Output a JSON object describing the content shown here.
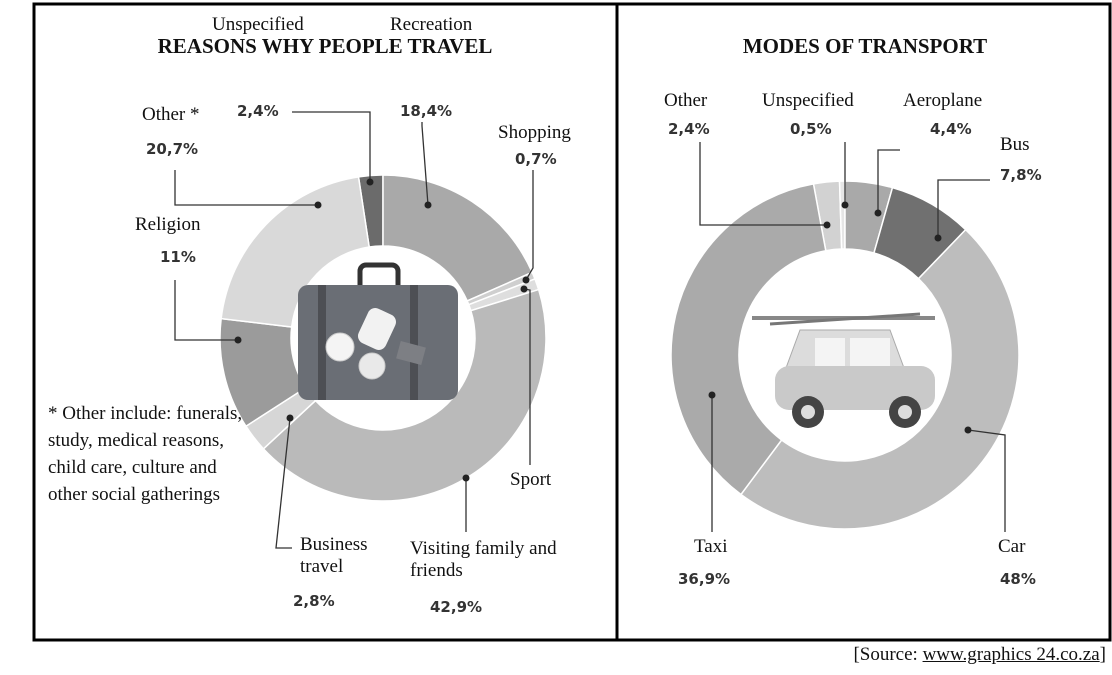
{
  "chart_data": [
    {
      "type": "donut",
      "title": "REASONS WHY PEOPLE TRAVEL",
      "categories": [
        "Unspecified",
        "Recreation",
        "Shopping",
        "Sport",
        "Visiting family and friends",
        "Business travel",
        "Religion",
        "Other *"
      ],
      "values": [
        2.4,
        18.4,
        0.7,
        1.1,
        42.9,
        2.8,
        11,
        20.7
      ],
      "value_labels": [
        "2,4%",
        "18,4%",
        "0,7%",
        null,
        "42,9%",
        "2,8%",
        "11%",
        "20,7%"
      ],
      "colors": [
        "#6b6b6b",
        "#a9a9a9",
        "#cfcfcf",
        "#dedede",
        "#bababa",
        "#d6d6d6",
        "#9b9b9b",
        "#d9d9d9"
      ],
      "annotation": "* Other include: funerals, study, medical reasons, child care, culture and other social gatherings"
    },
    {
      "type": "donut",
      "title": "MODES OF TRANSPORT",
      "categories": [
        "Other",
        "Unspecified",
        "Aeroplane",
        "Bus",
        "Car",
        "Taxi"
      ],
      "values": [
        2.4,
        0.5,
        4.4,
        7.8,
        48,
        36.9
      ],
      "value_labels": [
        "2,4%",
        "0,5%",
        "4,4%",
        "7,8%",
        "48%",
        "36,9%"
      ],
      "colors": [
        "#d2d2d2",
        "#e6e6e6",
        "#a9a9a9",
        "#707070",
        "#bdbdbd",
        "#aaaaaa"
      ]
    }
  ],
  "source": {
    "text": "[Source:",
    "link": "www.graphics 24.co.za",
    "close": "]"
  }
}
